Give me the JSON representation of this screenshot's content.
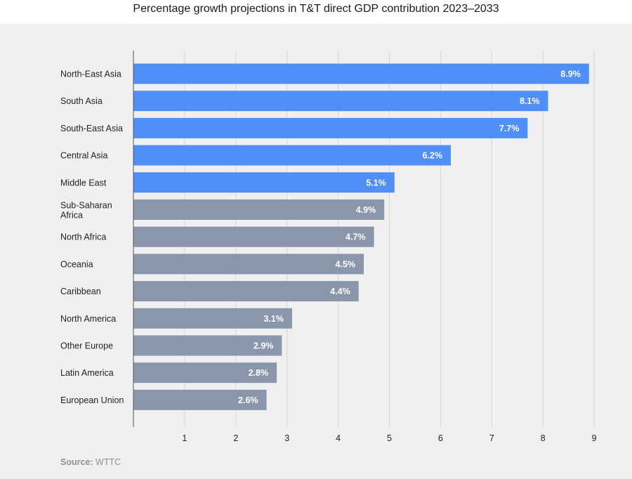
{
  "chart_data": {
    "type": "bar",
    "orientation": "horizontal",
    "title": "Percentage growth projections in T&T direct GDP contribution 2023–2033",
    "categories": [
      "North-East Asia",
      "South Asia",
      "South-East Asia",
      "Central Asia",
      "Middle East",
      "Sub-Saharan Africa",
      "North Africa",
      "Oceania",
      "Caribbean",
      "North America",
      "Other Europe",
      "Latin America",
      "European Union"
    ],
    "values": [
      8.9,
      8.1,
      7.7,
      6.2,
      5.1,
      4.9,
      4.7,
      4.5,
      4.4,
      3.1,
      2.9,
      2.8,
      2.6
    ],
    "value_labels": [
      "8.9%",
      "8.1%",
      "7.7%",
      "6.2%",
      "5.1%",
      "4.9%",
      "4.7%",
      "4.5%",
      "4.4%",
      "3.1%",
      "2.9%",
      "2.8%",
      "2.6%"
    ],
    "highlight_count": 5,
    "xlim": [
      0,
      9
    ],
    "xticks": [
      1,
      2,
      3,
      4,
      5,
      6,
      7,
      8,
      9
    ],
    "xlabel": "",
    "ylabel": "",
    "grid": true,
    "colors": {
      "highlight": "#4f8ff7",
      "default": "#8a97ab",
      "grid": "#d6d6d6",
      "axis": "#555555"
    }
  },
  "source": {
    "label": "Source:",
    "value": "WTTC"
  }
}
